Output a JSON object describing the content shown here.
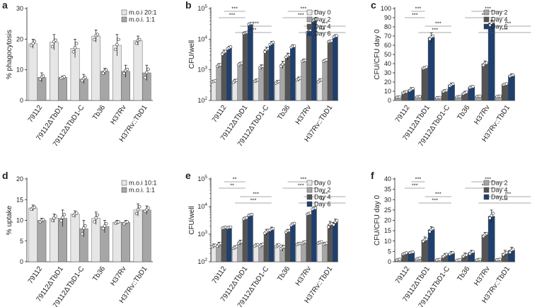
{
  "colors": {
    "light": "#e6e6e6",
    "mid": "#a6a6a6",
    "dark": "#555555",
    "navy": "#1f3f6e",
    "axis": "#222222",
    "marker_edge": "#444444"
  },
  "chart_data": [
    {
      "panel": "a",
      "type": "bar",
      "scale": "linear",
      "ylabel": "% phagocytosis",
      "ylim": [
        0,
        30
      ],
      "yticks": [
        0,
        10,
        20,
        30
      ],
      "ytick_labels": [
        "0",
        "10",
        "20",
        "30"
      ],
      "categories": [
        "79112",
        "79112ΔTbD1",
        "79112ΔTbD1-C",
        "Tb36",
        "H37Rv",
        "H37Rv::TbD1"
      ],
      "series": [
        {
          "name": "m.o.i 20:1",
          "color": "light",
          "values": [
            18.5,
            19,
            17,
            21,
            18,
            19.5
          ],
          "errors": [
            1.5,
            2.5,
            3,
            2,
            3.5,
            1.5
          ]
        },
        {
          "name": "m.o.i. 1:1",
          "color": "mid",
          "values": [
            7.5,
            7.5,
            7,
            9.5,
            9.5,
            9
          ],
          "errors": [
            1.5,
            0.5,
            1.5,
            1,
            2,
            2.5
          ]
        }
      ],
      "legend": "top-right",
      "significance": []
    },
    {
      "panel": "b",
      "type": "bar",
      "scale": "log",
      "ylabel": "CFU/well",
      "ylim": [
        100,
        100000
      ],
      "yticks": [
        100,
        1000,
        10000,
        100000
      ],
      "ytick_labels": [
        "10^2",
        "10^3",
        "10^4",
        "10^5"
      ],
      "categories": [
        "79112",
        "79112ΔTbD1",
        "79112ΔTbD1-C",
        "Tb36",
        "H37Rv",
        "H37Rv::TbD1"
      ],
      "series": [
        {
          "name": "Day 0",
          "color": "light",
          "values": [
            420,
            430,
            440,
            400,
            500,
            450
          ],
          "errors": [
            40,
            60,
            60,
            50,
            80,
            60
          ]
        },
        {
          "name": "Day 2",
          "color": "mid",
          "values": [
            1400,
            1550,
            1250,
            1500,
            2000,
            2000
          ],
          "errors": [
            200,
            200,
            200,
            400,
            250,
            200
          ]
        },
        {
          "name": "Day 4",
          "color": "dark",
          "values": [
            3700,
            16000,
            4500,
            2800,
            18000,
            8500
          ],
          "errors": [
            700,
            1500,
            1000,
            700,
            2500,
            700
          ]
        },
        {
          "name": "Day 6",
          "color": "navy",
          "values": [
            5200,
            32000,
            7200,
            5800,
            42000,
            12500
          ],
          "errors": [
            700,
            2500,
            1200,
            800,
            4000,
            1500
          ]
        }
      ],
      "legend": "top-right",
      "significance": [
        {
          "group": 0,
          "from": 2,
          "to": 1,
          "level": 2,
          "label": "***"
        },
        {
          "group": 0,
          "from": 2,
          "to": 1,
          "level": 1,
          "label": "***"
        },
        {
          "group": 1,
          "from": 3,
          "to": 2,
          "level": 1,
          "label": "***"
        },
        {
          "group": 1,
          "from": 3,
          "to": 2,
          "level": 0,
          "label": "***"
        },
        {
          "group": 3,
          "from": 4,
          "to": 3,
          "level": 2,
          "label": "***"
        },
        {
          "group": 3,
          "from": 4,
          "to": 3,
          "level": 1,
          "label": "***"
        },
        {
          "group": 4,
          "from": 5,
          "to": 4,
          "level": 1,
          "label": "***"
        },
        {
          "group": 4,
          "from": 5,
          "to": 4,
          "level": 0,
          "label": "***"
        }
      ]
    },
    {
      "panel": "c",
      "type": "bar",
      "scale": "linear",
      "ylabel": "CFU/CFU day 0",
      "ylim": [
        0,
        100
      ],
      "yticks": [
        0,
        10,
        20,
        30,
        40,
        50,
        60,
        70,
        80,
        90,
        100
      ],
      "ytick_labels": [
        "0",
        "10",
        "20",
        "30",
        "40",
        "50",
        "60",
        "70",
        "80",
        "90",
        "100"
      ],
      "categories": [
        "79112",
        "79112ΔTbD1",
        "79112ΔTbD1-C",
        "Tb36",
        "H37Rv",
        "H37Rv::TbD1"
      ],
      "series": [
        {
          "name": "Day 2",
          "color": "mid",
          "values": [
            3.5,
            4,
            3,
            4,
            4.5,
            4.5
          ],
          "errors": [
            0.5,
            0.5,
            0.5,
            0.5,
            0.5,
            0.5
          ]
        },
        {
          "name": "Day 4",
          "color": "dark",
          "values": [
            9,
            35.5,
            10.5,
            8,
            40,
            17.5
          ],
          "errors": [
            1.5,
            1.5,
            1.5,
            2,
            3,
            1
          ]
        },
        {
          "name": "Day 6",
          "color": "navy",
          "values": [
            12,
            68.5,
            17,
            14.5,
            84,
            27
          ],
          "errors": [
            2,
            5,
            2,
            1.5,
            3.5,
            2
          ]
        }
      ],
      "legend": "top-right",
      "significance": [
        {
          "group": 0,
          "from": 1,
          "to": 1,
          "level": 2,
          "label": "***"
        },
        {
          "group": 0,
          "from": 1,
          "to": 1,
          "level": 1,
          "label": "***"
        },
        {
          "group": 1,
          "from": 2,
          "to": 2,
          "level": 1,
          "label": "***"
        },
        {
          "group": 1,
          "from": 2,
          "to": 2,
          "level": 0,
          "label": "***"
        },
        {
          "group": 3,
          "from": 4,
          "to": 4,
          "level": 2,
          "label": "***"
        },
        {
          "group": 3,
          "from": 4,
          "to": 4,
          "level": 1,
          "label": "***"
        },
        {
          "group": 4,
          "from": 5,
          "to": 5,
          "level": 1,
          "label": "***"
        },
        {
          "group": 4,
          "from": 5,
          "to": 5,
          "level": 0,
          "label": "***"
        }
      ]
    },
    {
      "panel": "d",
      "type": "bar",
      "scale": "linear",
      "ylabel": "% uptake",
      "ylim": [
        0,
        20
      ],
      "yticks": [
        0,
        5,
        10,
        15,
        20
      ],
      "ytick_labels": [
        "0",
        "5",
        "10",
        "15",
        "20"
      ],
      "categories": [
        "79112",
        "79112ΔTbD1",
        "79112ΔTbD1-C",
        "Tb36",
        "H37Rv",
        "H37Rv::TbD1"
      ],
      "series": [
        {
          "name": "m.o.i 10:1",
          "color": "light",
          "values": [
            13,
            10.5,
            11.5,
            10.5,
            9.5,
            12.5
          ],
          "errors": [
            0.7,
            1,
            0.8,
            1.5,
            0.5,
            1.5
          ]
        },
        {
          "name": "m.o.i. 1:1",
          "color": "mid",
          "values": [
            10,
            10.5,
            8,
            8.5,
            9.5,
            12.5
          ],
          "errors": [
            0.5,
            2,
            2,
            1.5,
            0.5,
            1
          ]
        }
      ],
      "legend": "top-right",
      "significance": []
    },
    {
      "panel": "e",
      "type": "bar",
      "scale": "log",
      "ylabel": "CFU/well",
      "ylim": [
        100,
        100000
      ],
      "yticks": [
        100,
        1000,
        10000,
        100000
      ],
      "ytick_labels": [
        "10^2",
        "10^3",
        "10^4",
        "10^5"
      ],
      "categories": [
        "79112",
        "79112ΔTbD1",
        "79112ΔTbD1-C",
        "Tb36",
        "H37Rv",
        "H37Rv::TbD1"
      ],
      "series": [
        {
          "name": "Day 0",
          "color": "light",
          "values": [
            380,
            330,
            400,
            380,
            450,
            500
          ],
          "errors": [
            60,
            50,
            50,
            60,
            50,
            50
          ]
        },
        {
          "name": "Day 2",
          "color": "mid",
          "values": [
            420,
            500,
            400,
            320,
            500,
            450
          ],
          "errors": [
            90,
            100,
            60,
            80,
            60,
            60
          ]
        },
        {
          "name": "Day 4",
          "color": "dark",
          "values": [
            1700,
            3800,
            1200,
            1300,
            5500,
            2200
          ],
          "errors": [
            150,
            400,
            300,
            200,
            500,
            700
          ]
        },
        {
          "name": "Day 6",
          "color": "navy",
          "values": [
            1750,
            5000,
            1500,
            2300,
            8500,
            2700
          ],
          "errors": [
            150,
            300,
            300,
            300,
            1200,
            800
          ]
        }
      ],
      "legend": "top-right",
      "significance": [
        {
          "group": 0,
          "from": 2,
          "to": 1,
          "level": 2,
          "label": "**"
        },
        {
          "group": 0,
          "from": 2,
          "to": 1,
          "level": 1,
          "label": "**"
        },
        {
          "group": 1,
          "from": 3,
          "to": 2,
          "level": 1,
          "label": "***"
        },
        {
          "group": 1,
          "from": 3,
          "to": 2,
          "level": 0,
          "label": "***"
        },
        {
          "group": 3,
          "from": 4,
          "to": 3,
          "level": 2,
          "label": "***"
        },
        {
          "group": 3,
          "from": 4,
          "to": 3,
          "level": 1,
          "label": "***"
        },
        {
          "group": 4,
          "from": 5,
          "to": 4,
          "level": 1,
          "label": "***"
        },
        {
          "group": 4,
          "from": 5,
          "to": 4,
          "level": 0,
          "label": "**"
        }
      ]
    },
    {
      "panel": "f",
      "type": "bar",
      "scale": "linear",
      "ylabel": "CFU/CFU day 0",
      "ylim": [
        0,
        40
      ],
      "yticks": [
        0,
        5,
        10,
        15,
        20,
        25,
        30,
        35,
        40
      ],
      "ytick_labels": [
        "0",
        "5",
        "10",
        "15",
        "20",
        "25",
        "30",
        "35",
        "40"
      ],
      "categories": [
        "79112",
        "79112ΔTbD1",
        "79112ΔTbD1-C",
        "Tb36",
        "H37Rv",
        "H37Rv::TbD1"
      ],
      "series": [
        {
          "name": "Day 2",
          "color": "mid",
          "values": [
            1,
            1.5,
            1,
            0.8,
            1,
            1
          ],
          "errors": [
            0.3,
            0.5,
            0.3,
            0.3,
            0.3,
            0.3
          ]
        },
        {
          "name": "Day 4",
          "color": "dark",
          "values": [
            4,
            10.5,
            3,
            3,
            13,
            4
          ],
          "errors": [
            0.5,
            1.5,
            1,
            1.2,
            1.2,
            1.5
          ]
        },
        {
          "name": "Day 6",
          "color": "navy",
          "values": [
            4.5,
            15.5,
            4,
            4.5,
            22,
            5.5
          ],
          "errors": [
            0.5,
            1.5,
            1,
            1,
            3,
            1.5
          ]
        }
      ],
      "legend": "top-right",
      "significance": [
        {
          "group": 0,
          "from": 1,
          "to": 1,
          "level": 2,
          "label": "***"
        },
        {
          "group": 0,
          "from": 1,
          "to": 1,
          "level": 1,
          "label": "***"
        },
        {
          "group": 1,
          "from": 2,
          "to": 2,
          "level": 1,
          "label": "***"
        },
        {
          "group": 1,
          "from": 2,
          "to": 2,
          "level": 0,
          "label": "***"
        },
        {
          "group": 3,
          "from": 4,
          "to": 4,
          "level": 2,
          "label": "***"
        },
        {
          "group": 3,
          "from": 4,
          "to": 4,
          "level": 1,
          "label": "***"
        },
        {
          "group": 4,
          "from": 5,
          "to": 5,
          "level": 1,
          "label": "***"
        },
        {
          "group": 4,
          "from": 5,
          "to": 5,
          "level": 0,
          "label": "***"
        }
      ]
    }
  ]
}
